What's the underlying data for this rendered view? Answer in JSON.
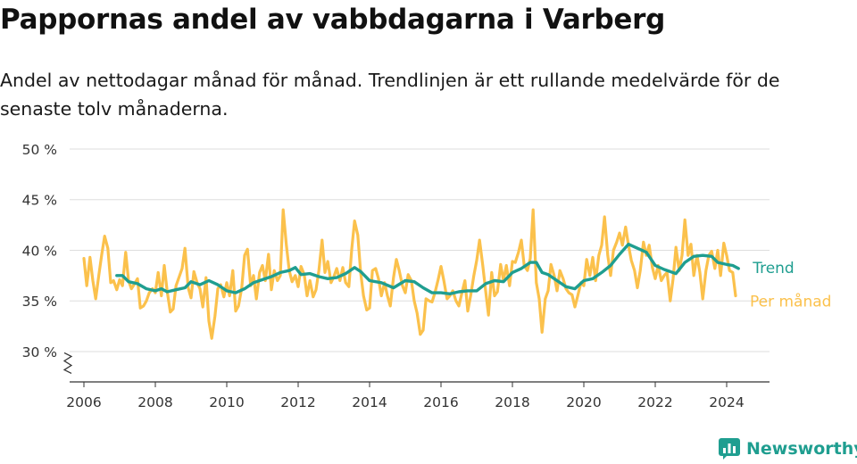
{
  "header": {
    "title": "Pappornas andel av vabbdagarna i Varberg",
    "subtitle": "Andel av nettodagar månad för månad. Trendlinjen är ett rullande medelvärde för de senaste tolv månaderna."
  },
  "brand": {
    "name": "Newsworthy",
    "icon": "newsworthy-logo-icon",
    "color": "#1f9e90"
  },
  "chart_data": {
    "type": "line",
    "title": "Pappornas andel av vabbdagarna i Varberg",
    "xlabel": "",
    "ylabel": "",
    "xlim": [
      2005.6,
      2025.2
    ],
    "ylim": [
      27,
      50
    ],
    "y_axis_break": true,
    "grid": true,
    "y_ticks": [
      30,
      35,
      40,
      45,
      50
    ],
    "y_tick_labels": [
      "30 %",
      "35 %",
      "40 %",
      "45 %",
      "50 %"
    ],
    "x_ticks": [
      2006,
      2008,
      2010,
      2012,
      2014,
      2016,
      2018,
      2020,
      2022,
      2024
    ],
    "x_tick_labels": [
      "2006",
      "2008",
      "2010",
      "2012",
      "2014",
      "2016",
      "2018",
      "2020",
      "2022",
      "2024"
    ],
    "legend": "direct labels at line ends (right)",
    "series": [
      {
        "name": "Per månad",
        "color": "#fbc14c",
        "points": [
          [
            2006.0,
            39.2
          ],
          [
            2006.08,
            36.5
          ],
          [
            2006.17,
            39.3
          ],
          [
            2006.25,
            37.0
          ],
          [
            2006.33,
            35.2
          ],
          [
            2006.42,
            37.6
          ],
          [
            2006.5,
            39.6
          ],
          [
            2006.58,
            41.4
          ],
          [
            2006.67,
            40.2
          ],
          [
            2006.75,
            36.8
          ],
          [
            2006.83,
            37.0
          ],
          [
            2006.92,
            36.1
          ],
          [
            2007.0,
            37.1
          ],
          [
            2007.08,
            36.5
          ],
          [
            2007.17,
            39.8
          ],
          [
            2007.25,
            37.0
          ],
          [
            2007.33,
            36.2
          ],
          [
            2007.42,
            36.7
          ],
          [
            2007.5,
            37.2
          ],
          [
            2007.58,
            34.3
          ],
          [
            2007.67,
            34.5
          ],
          [
            2007.75,
            35.0
          ],
          [
            2007.83,
            35.8
          ],
          [
            2007.92,
            36.2
          ],
          [
            2008.0,
            35.8
          ],
          [
            2008.08,
            37.8
          ],
          [
            2008.17,
            35.5
          ],
          [
            2008.25,
            38.5
          ],
          [
            2008.33,
            36.0
          ],
          [
            2008.42,
            33.9
          ],
          [
            2008.5,
            34.2
          ],
          [
            2008.58,
            36.5
          ],
          [
            2008.67,
            37.4
          ],
          [
            2008.75,
            38.2
          ],
          [
            2008.83,
            40.2
          ],
          [
            2008.92,
            36.3
          ],
          [
            2009.0,
            35.3
          ],
          [
            2009.08,
            37.9
          ],
          [
            2009.17,
            36.8
          ],
          [
            2009.25,
            36.2
          ],
          [
            2009.33,
            34.4
          ],
          [
            2009.42,
            37.3
          ],
          [
            2009.5,
            33.0
          ],
          [
            2009.58,
            31.3
          ],
          [
            2009.67,
            33.5
          ],
          [
            2009.75,
            36.2
          ],
          [
            2009.83,
            36.6
          ],
          [
            2009.92,
            35.4
          ],
          [
            2010.0,
            36.8
          ],
          [
            2010.08,
            35.5
          ],
          [
            2010.17,
            38.0
          ],
          [
            2010.25,
            34.0
          ],
          [
            2010.33,
            34.5
          ],
          [
            2010.42,
            36.3
          ],
          [
            2010.5,
            39.5
          ],
          [
            2010.58,
            40.1
          ],
          [
            2010.67,
            36.5
          ],
          [
            2010.75,
            37.5
          ],
          [
            2010.83,
            35.2
          ],
          [
            2010.92,
            37.8
          ],
          [
            2011.0,
            38.5
          ],
          [
            2011.08,
            37.0
          ],
          [
            2011.17,
            39.6
          ],
          [
            2011.25,
            36.1
          ],
          [
            2011.33,
            38.0
          ],
          [
            2011.42,
            37.0
          ],
          [
            2011.5,
            37.5
          ],
          [
            2011.58,
            44.0
          ],
          [
            2011.67,
            40.5
          ],
          [
            2011.75,
            38.0
          ],
          [
            2011.83,
            36.9
          ],
          [
            2011.92,
            37.5
          ],
          [
            2012.0,
            36.4
          ],
          [
            2012.08,
            38.4
          ],
          [
            2012.17,
            37.6
          ],
          [
            2012.25,
            35.5
          ],
          [
            2012.33,
            37.0
          ],
          [
            2012.42,
            35.4
          ],
          [
            2012.5,
            36.1
          ],
          [
            2012.58,
            38.0
          ],
          [
            2012.67,
            41.0
          ],
          [
            2012.75,
            37.8
          ],
          [
            2012.83,
            38.9
          ],
          [
            2012.92,
            36.8
          ],
          [
            2013.0,
            37.4
          ],
          [
            2013.08,
            38.2
          ],
          [
            2013.17,
            37.0
          ],
          [
            2013.25,
            38.3
          ],
          [
            2013.33,
            36.8
          ],
          [
            2013.42,
            36.4
          ],
          [
            2013.5,
            40.1
          ],
          [
            2013.58,
            42.9
          ],
          [
            2013.67,
            41.5
          ],
          [
            2013.75,
            37.8
          ],
          [
            2013.83,
            35.5
          ],
          [
            2013.92,
            34.1
          ],
          [
            2014.0,
            34.3
          ],
          [
            2014.08,
            38.0
          ],
          [
            2014.17,
            38.2
          ],
          [
            2014.25,
            37.2
          ],
          [
            2014.33,
            35.5
          ],
          [
            2014.42,
            36.8
          ],
          [
            2014.5,
            35.5
          ],
          [
            2014.58,
            34.5
          ],
          [
            2014.67,
            37.3
          ],
          [
            2014.75,
            39.1
          ],
          [
            2014.83,
            38.0
          ],
          [
            2014.92,
            36.5
          ],
          [
            2015.0,
            35.8
          ],
          [
            2015.08,
            37.6
          ],
          [
            2015.17,
            37.0
          ],
          [
            2015.25,
            35.0
          ],
          [
            2015.33,
            33.8
          ],
          [
            2015.42,
            31.7
          ],
          [
            2015.5,
            32.1
          ],
          [
            2015.58,
            35.2
          ],
          [
            2015.67,
            35.0
          ],
          [
            2015.75,
            34.9
          ],
          [
            2015.83,
            35.8
          ],
          [
            2015.92,
            37.1
          ],
          [
            2016.0,
            38.4
          ],
          [
            2016.08,
            37.0
          ],
          [
            2016.17,
            35.2
          ],
          [
            2016.25,
            35.5
          ],
          [
            2016.33,
            36.0
          ],
          [
            2016.42,
            35.0
          ],
          [
            2016.5,
            34.5
          ],
          [
            2016.58,
            35.7
          ],
          [
            2016.67,
            37.0
          ],
          [
            2016.75,
            34.0
          ],
          [
            2016.83,
            35.5
          ],
          [
            2016.92,
            37.5
          ],
          [
            2017.0,
            39.0
          ],
          [
            2017.08,
            41.0
          ],
          [
            2017.17,
            38.5
          ],
          [
            2017.25,
            36.0
          ],
          [
            2017.33,
            33.6
          ],
          [
            2017.42,
            37.8
          ],
          [
            2017.5,
            35.5
          ],
          [
            2017.58,
            35.9
          ],
          [
            2017.67,
            38.6
          ],
          [
            2017.75,
            37.0
          ],
          [
            2017.83,
            38.5
          ],
          [
            2017.92,
            36.5
          ],
          [
            2018.0,
            38.9
          ],
          [
            2018.08,
            38.8
          ],
          [
            2018.17,
            39.8
          ],
          [
            2018.25,
            41.0
          ],
          [
            2018.33,
            38.5
          ],
          [
            2018.42,
            38.0
          ],
          [
            2018.5,
            39.2
          ],
          [
            2018.58,
            44.0
          ],
          [
            2018.67,
            36.8
          ],
          [
            2018.75,
            35.2
          ],
          [
            2018.83,
            31.9
          ],
          [
            2018.92,
            35.2
          ],
          [
            2019.0,
            36.0
          ],
          [
            2019.08,
            38.6
          ],
          [
            2019.17,
            37.5
          ],
          [
            2019.25,
            36.0
          ],
          [
            2019.33,
            38.0
          ],
          [
            2019.42,
            37.2
          ],
          [
            2019.5,
            36.2
          ],
          [
            2019.58,
            35.8
          ],
          [
            2019.67,
            35.6
          ],
          [
            2019.75,
            34.4
          ],
          [
            2019.83,
            35.5
          ],
          [
            2019.92,
            36.8
          ],
          [
            2020.0,
            36.5
          ],
          [
            2020.08,
            39.1
          ],
          [
            2020.17,
            37.5
          ],
          [
            2020.25,
            39.3
          ],
          [
            2020.33,
            37.0
          ],
          [
            2020.42,
            39.5
          ],
          [
            2020.5,
            40.5
          ],
          [
            2020.58,
            43.3
          ],
          [
            2020.67,
            39.5
          ],
          [
            2020.75,
            37.5
          ],
          [
            2020.83,
            40.0
          ],
          [
            2020.92,
            40.8
          ],
          [
            2021.0,
            41.7
          ],
          [
            2021.08,
            40.5
          ],
          [
            2021.17,
            42.3
          ],
          [
            2021.25,
            40.5
          ],
          [
            2021.33,
            39.0
          ],
          [
            2021.42,
            38.0
          ],
          [
            2021.5,
            36.3
          ],
          [
            2021.58,
            38.0
          ],
          [
            2021.67,
            40.8
          ],
          [
            2021.75,
            39.5
          ],
          [
            2021.83,
            40.5
          ],
          [
            2021.92,
            38.3
          ],
          [
            2022.0,
            37.2
          ],
          [
            2022.08,
            38.5
          ],
          [
            2022.17,
            37.0
          ],
          [
            2022.25,
            37.5
          ],
          [
            2022.33,
            37.8
          ],
          [
            2022.42,
            35.0
          ],
          [
            2022.5,
            37.2
          ],
          [
            2022.58,
            40.3
          ],
          [
            2022.67,
            38.0
          ],
          [
            2022.75,
            39.5
          ],
          [
            2022.83,
            43.0
          ],
          [
            2022.92,
            39.5
          ],
          [
            2023.0,
            40.6
          ],
          [
            2023.08,
            37.5
          ],
          [
            2023.17,
            39.5
          ],
          [
            2023.25,
            37.8
          ],
          [
            2023.33,
            35.2
          ],
          [
            2023.42,
            38.0
          ],
          [
            2023.5,
            39.5
          ],
          [
            2023.58,
            39.9
          ],
          [
            2023.67,
            38.2
          ],
          [
            2023.75,
            40.0
          ],
          [
            2023.83,
            37.5
          ],
          [
            2023.92,
            40.7
          ],
          [
            2024.0,
            39.5
          ],
          [
            2024.08,
            38.0
          ],
          [
            2024.17,
            37.8
          ],
          [
            2024.25,
            35.5
          ]
        ]
      },
      {
        "name": "Trend",
        "color": "#1f9e90",
        "points": [
          [
            2006.92,
            37.5
          ],
          [
            2007.08,
            37.5
          ],
          [
            2007.25,
            36.9
          ],
          [
            2007.5,
            36.7
          ],
          [
            2007.75,
            36.2
          ],
          [
            2008.0,
            36.0
          ],
          [
            2008.17,
            36.2
          ],
          [
            2008.33,
            35.9
          ],
          [
            2008.58,
            36.1
          ],
          [
            2008.83,
            36.3
          ],
          [
            2009.0,
            36.9
          ],
          [
            2009.25,
            36.6
          ],
          [
            2009.5,
            37.0
          ],
          [
            2009.75,
            36.6
          ],
          [
            2010.0,
            36.0
          ],
          [
            2010.25,
            35.8
          ],
          [
            2010.5,
            36.2
          ],
          [
            2010.75,
            36.8
          ],
          [
            2011.0,
            37.1
          ],
          [
            2011.25,
            37.4
          ],
          [
            2011.5,
            37.8
          ],
          [
            2011.75,
            38.0
          ],
          [
            2011.92,
            38.3
          ],
          [
            2012.08,
            37.6
          ],
          [
            2012.33,
            37.7
          ],
          [
            2012.58,
            37.4
          ],
          [
            2012.83,
            37.2
          ],
          [
            2013.08,
            37.3
          ],
          [
            2013.33,
            37.7
          ],
          [
            2013.58,
            38.3
          ],
          [
            2013.75,
            37.9
          ],
          [
            2014.0,
            37.0
          ],
          [
            2014.33,
            36.8
          ],
          [
            2014.67,
            36.3
          ],
          [
            2015.0,
            37.0
          ],
          [
            2015.25,
            36.9
          ],
          [
            2015.5,
            36.3
          ],
          [
            2015.75,
            35.8
          ],
          [
            2016.0,
            35.8
          ],
          [
            2016.25,
            35.7
          ],
          [
            2016.5,
            35.9
          ],
          [
            2016.75,
            36.0
          ],
          [
            2017.0,
            36.0
          ],
          [
            2017.25,
            36.7
          ],
          [
            2017.5,
            37.0
          ],
          [
            2017.75,
            36.9
          ],
          [
            2018.0,
            37.8
          ],
          [
            2018.25,
            38.2
          ],
          [
            2018.5,
            38.8
          ],
          [
            2018.67,
            38.8
          ],
          [
            2018.83,
            37.8
          ],
          [
            2019.0,
            37.6
          ],
          [
            2019.25,
            37.0
          ],
          [
            2019.5,
            36.4
          ],
          [
            2019.75,
            36.2
          ],
          [
            2020.0,
            37.0
          ],
          [
            2020.25,
            37.2
          ],
          [
            2020.5,
            37.8
          ],
          [
            2020.75,
            38.5
          ],
          [
            2021.0,
            39.6
          ],
          [
            2021.25,
            40.6
          ],
          [
            2021.5,
            40.2
          ],
          [
            2021.75,
            39.8
          ],
          [
            2022.0,
            38.5
          ],
          [
            2022.25,
            38.1
          ],
          [
            2022.58,
            37.7
          ],
          [
            2022.83,
            38.8
          ],
          [
            2023.08,
            39.4
          ],
          [
            2023.33,
            39.5
          ],
          [
            2023.58,
            39.4
          ],
          [
            2023.75,
            38.8
          ],
          [
            2024.0,
            38.6
          ],
          [
            2024.17,
            38.5
          ],
          [
            2024.33,
            38.2
          ]
        ]
      }
    ]
  }
}
